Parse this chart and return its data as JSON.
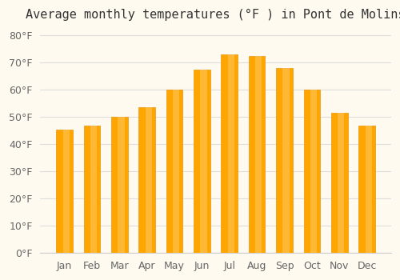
{
  "title": "Average monthly temperatures (°F ) in Pont de Molins",
  "months": [
    "Jan",
    "Feb",
    "Mar",
    "Apr",
    "May",
    "Jun",
    "Jul",
    "Aug",
    "Sep",
    "Oct",
    "Nov",
    "Dec"
  ],
  "values": [
    45.5,
    47.0,
    50.0,
    53.5,
    60.0,
    67.5,
    73.0,
    72.5,
    68.0,
    60.0,
    51.5,
    47.0
  ],
  "bar_color_face": "#FFA500",
  "bar_color_edge": "#E8950A",
  "background_color": "#FFFAF0",
  "grid_color": "#DDDDDD",
  "ylim": [
    0,
    83
  ],
  "yticks": [
    0,
    10,
    20,
    30,
    40,
    50,
    60,
    70,
    80
  ],
  "title_fontsize": 11,
  "tick_fontsize": 9,
  "bar_width": 0.6
}
